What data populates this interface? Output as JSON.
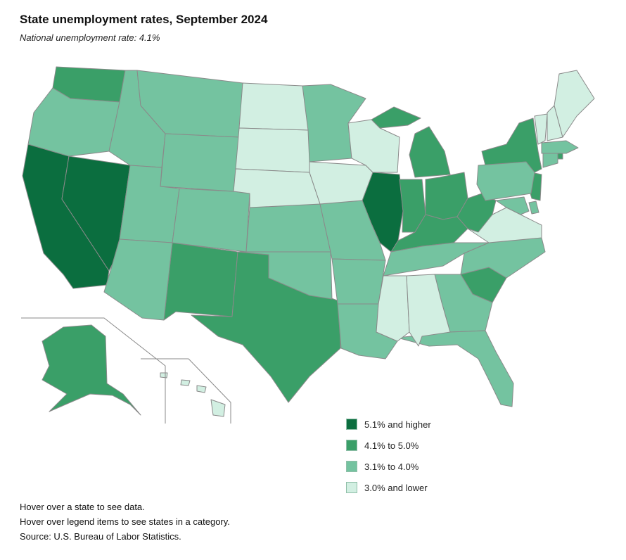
{
  "title": "State unemployment rates, September 2024",
  "subtitle": "National unemployment rate: 4.1%",
  "colors": {
    "high": "#0b6e3f",
    "mid_high": "#3a9f68",
    "mid_low": "#74c3a0",
    "low": "#d2efe2",
    "border": "#8a8a8a"
  },
  "legend": [
    {
      "label": "5.1% and higher",
      "color": "#0b6e3f"
    },
    {
      "label": "4.1% to 5.0%",
      "color": "#3a9f68"
    },
    {
      "label": "3.1% to 4.0%",
      "color": "#74c3a0"
    },
    {
      "label": "3.0% and lower",
      "color": "#d2efe2"
    }
  ],
  "notes": [
    "Hover over a state to see data.",
    "Hover over legend items to see states in a category.",
    "Source: U.S. Bureau of Labor Statistics."
  ]
}
